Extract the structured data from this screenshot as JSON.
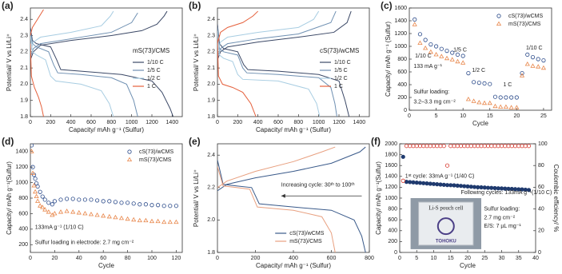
{
  "chart_data": [
    {
      "panel": "(a)",
      "type": "line",
      "xlabel": "Capacity/ mAh g⁻¹ (Sulfur)",
      "ylabel": "Potential/ V vs Li/Li⁺",
      "xlim": [
        0,
        1500
      ],
      "xticks": [
        0,
        200,
        400,
        600,
        800,
        1000,
        1200,
        1400
      ],
      "ylim": [
        1.8,
        2.47
      ],
      "yticks": [
        1.8,
        1.9,
        {
          "value": 2,
          "label": "2.0"
        },
        2.1,
        2.2,
        2.3,
        2.4
      ],
      "legend": "right",
      "legend_title": "mS(73)/CMS",
      "series": [
        {
          "name": "1/10 C",
          "color": "#3b4866",
          "x": [
            0,
            20,
            60,
            200,
            260,
            300,
            500,
            900,
            1200,
            1300,
            1380,
            1410
          ],
          "values": [
            2.35,
            2.27,
            2.25,
            2.23,
            2.15,
            2.09,
            2.08,
            2.06,
            2.02,
            1.95,
            1.85,
            1.8
          ],
          "charge_x": [
            0,
            30,
            100,
            400,
            800,
            1100,
            1250,
            1320,
            1350
          ],
          "charge_values": [
            2.15,
            2.2,
            2.24,
            2.27,
            2.3,
            2.33,
            2.37,
            2.42,
            2.45
          ]
        },
        {
          "name": "1/5 C",
          "color": "#6f90b2",
          "x": [
            0,
            20,
            60,
            180,
            230,
            270,
            500,
            800,
            950,
            1020,
            1060
          ],
          "values": [
            2.33,
            2.25,
            2.23,
            2.2,
            2.12,
            2.07,
            2.06,
            2.04,
            2.0,
            1.9,
            1.8
          ],
          "charge_x": [
            0,
            30,
            100,
            400,
            800,
            1000,
            1060
          ],
          "charge_values": [
            2.17,
            2.22,
            2.25,
            2.28,
            2.32,
            2.38,
            2.44
          ]
        },
        {
          "name": "1/2 C",
          "color": "#a8cde2",
          "x": [
            0,
            20,
            60,
            150,
            200,
            250,
            500,
            700,
            780,
            820
          ],
          "values": [
            2.3,
            2.2,
            2.18,
            2.15,
            2.05,
            2.02,
            2.0,
            1.96,
            1.88,
            1.8
          ],
          "charge_x": [
            0,
            30,
            100,
            400,
            700,
            790,
            820
          ],
          "charge_values": [
            2.2,
            2.26,
            2.29,
            2.32,
            2.36,
            2.42,
            2.45
          ]
        },
        {
          "name": "1 C",
          "color": "#e5603c",
          "x": [
            0,
            10,
            40,
            80,
            110,
            130
          ],
          "values": [
            2.25,
            2.05,
            1.98,
            1.92,
            1.86,
            1.8
          ],
          "charge_x": [
            0,
            20,
            60,
            100,
            130
          ],
          "charge_values": [
            2.3,
            2.35,
            2.39,
            2.43,
            2.46
          ]
        }
      ]
    },
    {
      "panel": "(b)",
      "type": "line",
      "xlabel": "Capacity/ mAh g⁻¹ (Sulfur)",
      "ylabel": "Potential/ V vs Li/Li⁺",
      "xlim": [
        0,
        1500
      ],
      "xticks": [
        0,
        200,
        400,
        600,
        800,
        1000,
        1200,
        1400
      ],
      "ylim": [
        1.8,
        2.47
      ],
      "yticks": [
        1.8,
        1.9,
        {
          "value": 2,
          "label": "2.0"
        },
        2.1,
        2.2,
        2.3,
        2.4
      ],
      "legend": "right",
      "legend_title": "cS(73)/wCMS",
      "series": [
        {
          "name": "1/10 C",
          "color": "#3b4866",
          "x": [
            0,
            20,
            60,
            200,
            260,
            300,
            600,
            1000,
            1200,
            1260,
            1300
          ],
          "values": [
            2.37,
            2.25,
            2.22,
            2.2,
            2.12,
            2.09,
            2.08,
            2.06,
            2.02,
            1.9,
            1.8
          ],
          "charge_x": [
            0,
            30,
            100,
            400,
            800,
            1150,
            1280,
            1320
          ],
          "charge_values": [
            2.15,
            2.2,
            2.23,
            2.26,
            2.29,
            2.32,
            2.38,
            2.45
          ]
        },
        {
          "name": "1/5 C",
          "color": "#6f90b2",
          "x": [
            0,
            20,
            60,
            200,
            250,
            290,
            600,
            1000,
            1120,
            1160,
            1180
          ],
          "values": [
            2.35,
            2.22,
            2.2,
            2.18,
            2.1,
            2.07,
            2.06,
            2.04,
            1.98,
            1.88,
            1.8
          ],
          "charge_x": [
            0,
            30,
            100,
            400,
            800,
            1120,
            1170
          ],
          "charge_values": [
            2.17,
            2.22,
            2.25,
            2.28,
            2.31,
            2.38,
            2.45
          ]
        },
        {
          "name": "1/2 C",
          "color": "#a8cde2",
          "x": [
            0,
            20,
            60,
            150,
            200,
            250,
            600,
            900,
            980,
            1010
          ],
          "values": [
            2.33,
            2.18,
            2.16,
            2.14,
            2.06,
            2.03,
            2.02,
            1.97,
            1.88,
            1.8
          ],
          "charge_x": [
            0,
            30,
            100,
            400,
            800,
            950,
            1000
          ],
          "charge_values": [
            2.2,
            2.26,
            2.29,
            2.32,
            2.35,
            2.4,
            2.45
          ]
        },
        {
          "name": "1 C",
          "color": "#e5603c",
          "x": [
            0,
            10,
            50,
            150,
            250,
            330,
            380
          ],
          "values": [
            2.28,
            2.05,
            2.0,
            1.98,
            1.95,
            1.88,
            1.8
          ],
          "charge_x": [
            0,
            30,
            100,
            250,
            350,
            400
          ],
          "charge_values": [
            2.25,
            2.32,
            2.35,
            2.38,
            2.42,
            2.45
          ]
        }
      ]
    },
    {
      "panel": "(c)",
      "type": "scatter",
      "xlabel": "Cycle",
      "ylabel": "Capacity/ mAh g⁻¹ (Sulfur)",
      "xlim": [
        0,
        26.5
      ],
      "xticks": [
        0,
        5,
        10,
        15,
        20,
        25
      ],
      "ylim": [
        0,
        1600
      ],
      "yticks": [
        0,
        200,
        400,
        600,
        800,
        1000,
        1200,
        1400,
        1600
      ],
      "legend": "upper right",
      "annotations": [
        "1/10 C",
        "133 mA g⁻¹",
        "1/5 C",
        "1/2 C",
        "1 C",
        "1/10 C",
        "Sulfur loading:",
        "3.2–3.3 mg cm⁻²"
      ],
      "series": [
        {
          "name": "cS(73)/wCMS",
          "color": "#2a4a8a",
          "marker": "circle",
          "filled": false,
          "x": [
            1,
            2,
            3,
            4,
            5,
            6,
            7,
            8,
            9,
            10,
            11,
            12,
            13,
            14,
            15,
            16,
            17,
            18,
            19,
            20,
            21,
            22,
            23,
            24,
            25
          ],
          "values": [
            1420,
            1190,
            1100,
            1030,
            1000,
            960,
            930,
            900,
            870,
            850,
            580,
            440,
            430,
            420,
            410,
            210,
            200,
            200,
            200,
            200,
            580,
            870,
            830,
            800,
            780
          ]
        },
        {
          "name": "mS(73)/CMS",
          "color": "#e8864a",
          "marker": "triangle",
          "filled": false,
          "x": [
            1,
            2,
            3,
            4,
            5,
            6,
            7,
            8,
            9,
            10,
            11,
            12,
            13,
            14,
            15,
            16,
            17,
            18,
            19,
            20,
            21,
            22,
            23,
            24,
            25
          ],
          "values": [
            1340,
            1050,
            970,
            910,
            870,
            840,
            810,
            790,
            760,
            740,
            170,
            140,
            120,
            110,
            110,
            60,
            50,
            50,
            40,
            40,
            540,
            720,
            690,
            680,
            660
          ]
        }
      ]
    },
    {
      "panel": "(d)",
      "type": "scatter",
      "xlabel": "Cycle",
      "ylabel": "Capacity/ mAh g⁻¹(Sulfur)",
      "xlim": [
        0,
        125
      ],
      "xticks": [
        0,
        20,
        40,
        60,
        80,
        100,
        120
      ],
      "ylim": [
        100,
        1500
      ],
      "yticks": [
        200,
        400,
        600,
        800,
        1000,
        1200,
        1400
      ],
      "legend": "upper right",
      "annotations": [
        "133mA g⁻¹ (1/10 C)",
        "Sulfur loading in electrode: 2.7 mg cm⁻²"
      ],
      "series": [
        {
          "name": "cS(73)/wCMS",
          "color": "#2a4a8a",
          "marker": "circle",
          "filled": false,
          "x": [
            1,
            2,
            3,
            4,
            5,
            6,
            8,
            10,
            12,
            15,
            18,
            20,
            25,
            30,
            35,
            40,
            45,
            50,
            55,
            60,
            65,
            70,
            75,
            80,
            85,
            90,
            95,
            100,
            105,
            110,
            115,
            120
          ],
          "values": [
            1480,
            1200,
            1100,
            1050,
            990,
            950,
            880,
            820,
            780,
            740,
            720,
            760,
            780,
            790,
            790,
            780,
            780,
            780,
            770,
            760,
            760,
            750,
            740,
            740,
            730,
            720,
            720,
            710,
            710,
            700,
            700,
            700
          ]
        },
        {
          "name": "mS(73)/CMS",
          "color": "#e8864a",
          "marker": "triangle",
          "filled": false,
          "x": [
            1,
            2,
            3,
            4,
            5,
            6,
            8,
            10,
            12,
            15,
            18,
            20,
            25,
            30,
            35,
            40,
            45,
            50,
            55,
            60,
            65,
            70,
            75,
            80,
            85,
            90,
            95,
            100,
            105,
            110,
            115,
            120
          ],
          "values": [
            1400,
            1120,
            960,
            880,
            820,
            760,
            700,
            680,
            650,
            620,
            580,
            600,
            620,
            630,
            620,
            610,
            600,
            590,
            580,
            570,
            560,
            550,
            540,
            530,
            520,
            510,
            510,
            500,
            500,
            490,
            490,
            490
          ]
        }
      ]
    },
    {
      "panel": "(e)",
      "type": "line",
      "xlabel": "Capacity/ mAh g⁻¹ (Sulfur)",
      "ylabel": "Potential/ V vs Li/Li⁺",
      "xlim": [
        0,
        800
      ],
      "xticks": [
        0,
        200,
        400,
        600,
        800
      ],
      "ylim": [
        1.8,
        2.47
      ],
      "yticks": [
        1.8,
        {
          "value": 2,
          "label": "2.0"
        },
        2.2,
        2.4
      ],
      "legend": "lower center",
      "annotations": [
        "Increasing cycle: 30ᵗʰ to 100ᵗʰ"
      ],
      "series": [
        {
          "name": "cS(73)/wCMS",
          "color": "#3a5a8a",
          "x": [
            0,
            30,
            100,
            180,
            220,
            400,
            600,
            720,
            760,
            780
          ],
          "values": [
            2.37,
            2.22,
            2.21,
            2.2,
            2.1,
            2.08,
            2.06,
            2.0,
            1.9,
            1.8
          ],
          "charge_x": [
            0,
            50,
            200,
            400,
            600,
            750,
            780
          ],
          "charge_values": [
            2.18,
            2.22,
            2.26,
            2.3,
            2.35,
            2.42,
            2.45
          ]
        },
        {
          "name": "mS(73)/CMS",
          "color": "#e8a080",
          "x": [
            0,
            30,
            100,
            170,
            210,
            400,
            550,
            600,
            620
          ],
          "values": [
            2.33,
            2.21,
            2.2,
            2.19,
            2.08,
            2.06,
            2.02,
            1.92,
            1.8
          ],
          "charge_x": [
            0,
            50,
            200,
            400,
            550,
            620
          ],
          "charge_values": [
            2.2,
            2.24,
            2.3,
            2.36,
            2.42,
            2.45
          ]
        }
      ]
    },
    {
      "panel": "(f)",
      "type": "scatter",
      "xlabel": "Cycle",
      "ylabel": "Capacity/ mAh g⁻¹(Sulfur)",
      "y2label": "Coulombic efficiency/ %",
      "xlim": [
        0,
        40
      ],
      "xticks": [
        0,
        5,
        10,
        15,
        20,
        25,
        30,
        35,
        40
      ],
      "ylim": [
        0,
        2000
      ],
      "yticks": [
        0,
        200,
        400,
        600,
        800,
        1000,
        1200,
        1400,
        1600,
        1800,
        2000
      ],
      "y2lim": [
        0,
        100
      ],
      "y2ticks": [
        0,
        20,
        40,
        60,
        80,
        100
      ],
      "annotations": [
        "1ˢᵗ cycle: 33mA g⁻¹ (1/40 C)",
        "Following cycles: 133mA g⁻¹(1/10 C)",
        "Sulfur loading:",
        "2.7 mg cm⁻²",
        "E/S: 7 µL mg⁻¹"
      ],
      "inset": {
        "title": "Li-S pouch cell",
        "logo": "TOHOKU"
      },
      "series": [
        {
          "color": "#1f3a6e",
          "marker": "circle",
          "filled": true,
          "x": [
            1,
            2,
            3,
            4,
            5,
            6,
            7,
            8,
            9,
            10,
            11,
            12,
            13,
            14,
            15,
            16,
            17,
            18,
            19,
            20,
            21,
            22,
            23,
            24,
            25,
            26,
            27,
            28,
            29,
            30,
            31,
            32,
            33,
            34,
            35,
            36,
            37,
            38
          ],
          "values": [
            1760,
            1300,
            1295,
            1290,
            1285,
            1280,
            1275,
            1270,
            1265,
            1260,
            1255,
            1250,
            1245,
            1240,
            1238,
            1235,
            1230,
            1225,
            1220,
            1215,
            1210,
            1205,
            1200,
            1198,
            1195,
            1190,
            1188,
            1185,
            1180,
            1178,
            1175,
            1172,
            1170,
            1165,
            1162,
            1160,
            1155,
            1150
          ]
        },
        {
          "color": "#d6372c",
          "marker": "circle",
          "filled": false,
          "axis": "y2",
          "x": [
            1,
            2,
            3,
            4,
            5,
            6,
            7,
            8,
            9,
            10,
            11,
            12,
            13,
            14,
            15,
            16,
            17,
            18,
            19,
            20,
            21,
            22,
            23,
            24,
            25,
            26,
            27,
            28,
            29,
            30,
            31,
            32,
            33,
            34,
            35,
            36,
            37,
            38
          ],
          "values": [
            66,
            98,
            98,
            98,
            98,
            98,
            98,
            98,
            98,
            98,
            98,
            98,
            98,
            80,
            98,
            98,
            98,
            98,
            98,
            98,
            98,
            98,
            98,
            98,
            98,
            98,
            98,
            98,
            98,
            98,
            98,
            98,
            98,
            98,
            98,
            98,
            98,
            98
          ]
        }
      ]
    }
  ]
}
